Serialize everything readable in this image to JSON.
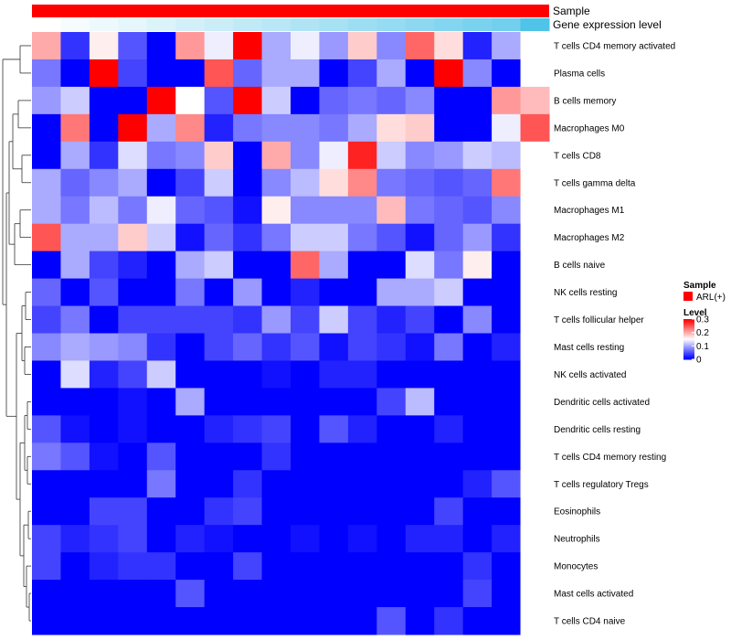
{
  "colors": {
    "sample_bar": "#ff0000",
    "low": "#0000ff",
    "mid": "#ffffff",
    "high": "#ff0000",
    "expr_low": "#ffffff",
    "expr_high": "#4fc3e8"
  },
  "annotation": {
    "sample_label": "Sample",
    "expression_label": "Gene expression level"
  },
  "legend": {
    "sample_title": "Sample",
    "sample_entry": "ARL(+)",
    "level_title": "Level",
    "ticks": [
      "0.3",
      "0.2",
      "0.1",
      "0"
    ],
    "tick_values": [
      0.3,
      0.2,
      0.1,
      0
    ]
  },
  "chart_data": {
    "type": "heatmap",
    "title": "",
    "xlabel": "",
    "ylabel": "",
    "value_range": [
      0,
      0.3
    ],
    "columns": 18,
    "rows": [
      "T cells CD4 memory activated",
      "Plasma cells",
      "B cells memory",
      "Macrophages M0",
      "T cells CD8",
      "T cells gamma delta",
      "Macrophages M1",
      "Macrophages M2",
      "B cells naive",
      "NK cells resting",
      "T cells follicular helper",
      "Mast cells resting",
      "NK cells activated",
      "Dendritic cells activated",
      "Dendritic cells resting",
      "T cells CD4 memory resting",
      "T cells regulatory  Tregs",
      "Eosinophils",
      "Neutrophils",
      "Monocytes",
      "Mast cells activated",
      "T cells CD4 naive"
    ],
    "values": [
      [
        0.2,
        0.03,
        0.16,
        0.05,
        0.0,
        0.21,
        0.14,
        0.3,
        0.1,
        0.14,
        0.09,
        0.18,
        0.08,
        0.24,
        0.17,
        0.02,
        0.1,
        null
      ],
      [
        0.07,
        0.0,
        0.3,
        0.04,
        0.0,
        0.0,
        0.25,
        0.06,
        0.1,
        0.1,
        0.0,
        0.04,
        0.1,
        0.0,
        0.3,
        0.08,
        0.0,
        null
      ],
      [
        0.09,
        0.12,
        0.0,
        0.0,
        0.3,
        0.15,
        0.05,
        0.3,
        0.12,
        0.0,
        0.06,
        0.07,
        0.06,
        0.08,
        0.0,
        0.0,
        0.21,
        0.19
      ],
      [
        0.0,
        0.23,
        0.0,
        0.3,
        0.1,
        0.22,
        0.02,
        0.07,
        0.08,
        0.08,
        0.07,
        0.1,
        0.17,
        0.18,
        0.0,
        0.0,
        0.14,
        0.25
      ],
      [
        0.0,
        0.1,
        0.03,
        0.13,
        0.07,
        0.08,
        0.18,
        0.0,
        0.2,
        0.08,
        0.14,
        0.28,
        0.12,
        0.08,
        0.09,
        0.12,
        0.11,
        null
      ],
      [
        0.1,
        0.06,
        0.08,
        0.1,
        0.0,
        0.04,
        0.12,
        0.0,
        0.08,
        0.11,
        0.17,
        0.22,
        0.07,
        0.06,
        0.05,
        0.06,
        0.23,
        null
      ],
      [
        0.1,
        0.07,
        0.11,
        0.07,
        0.14,
        0.06,
        0.05,
        0.01,
        0.16,
        0.08,
        0.08,
        0.08,
        0.19,
        0.07,
        0.06,
        0.05,
        0.08,
        null
      ],
      [
        0.25,
        0.1,
        0.1,
        0.18,
        0.12,
        0.01,
        0.06,
        0.03,
        0.07,
        0.12,
        0.12,
        0.07,
        0.05,
        0.01,
        0.06,
        0.09,
        0.03,
        null
      ],
      [
        0.0,
        0.1,
        0.04,
        0.02,
        0.0,
        0.1,
        0.12,
        0.0,
        0.0,
        0.24,
        0.1,
        0.0,
        0.0,
        0.13,
        0.07,
        0.16,
        0.0,
        null
      ],
      [
        0.06,
        0.0,
        0.05,
        0.0,
        0.0,
        0.07,
        0.0,
        0.09,
        0.0,
        0.02,
        0.0,
        0.0,
        0.1,
        0.1,
        0.12,
        0.0,
        0.0,
        null
      ],
      [
        0.04,
        0.07,
        0.0,
        0.04,
        0.04,
        0.04,
        0.04,
        0.03,
        0.09,
        0.04,
        0.12,
        0.04,
        0.02,
        0.04,
        0.0,
        0.08,
        0.0,
        null
      ],
      [
        0.08,
        0.1,
        0.09,
        0.08,
        0.03,
        0.0,
        0.04,
        0.06,
        0.03,
        0.05,
        0.01,
        0.04,
        0.03,
        0.01,
        0.07,
        0.0,
        0.02,
        null
      ],
      [
        0.0,
        0.13,
        0.02,
        0.04,
        0.12,
        0.0,
        0.0,
        0.0,
        0.01,
        0.0,
        0.02,
        0.02,
        0.0,
        0.0,
        0.0,
        0.0,
        0.0,
        null
      ],
      [
        0.0,
        0.0,
        0.0,
        0.01,
        0.0,
        0.1,
        0.0,
        0.0,
        0.0,
        0.0,
        0.0,
        0.0,
        0.04,
        0.11,
        0.0,
        0.0,
        0.0,
        null
      ],
      [
        0.05,
        0.01,
        0.0,
        0.01,
        0.0,
        0.0,
        0.02,
        0.03,
        0.04,
        0.0,
        0.05,
        0.02,
        0.0,
        0.0,
        0.02,
        0.0,
        0.0,
        null
      ],
      [
        0.07,
        0.05,
        0.01,
        0.0,
        0.05,
        0.0,
        0.0,
        0.0,
        0.03,
        0.0,
        0.0,
        0.0,
        0.0,
        0.0,
        0.0,
        0.0,
        0.0,
        null
      ],
      [
        0.0,
        0.0,
        0.0,
        0.0,
        0.07,
        0.0,
        0.0,
        0.03,
        0.0,
        0.0,
        0.0,
        0.0,
        0.0,
        0.0,
        0.0,
        0.02,
        0.05,
        null
      ],
      [
        0.0,
        0.0,
        0.04,
        0.04,
        0.0,
        0.0,
        0.03,
        0.04,
        0.0,
        0.0,
        0.0,
        0.0,
        0.0,
        0.0,
        0.04,
        0.0,
        0.0,
        null
      ],
      [
        0.04,
        0.02,
        0.03,
        0.04,
        0.0,
        0.02,
        0.01,
        0.0,
        0.0,
        0.01,
        0.0,
        0.01,
        0.0,
        0.02,
        0.02,
        0.0,
        0.02,
        null
      ],
      [
        0.04,
        0.0,
        0.02,
        0.03,
        0.03,
        0.0,
        0.0,
        0.04,
        0.0,
        0.0,
        0.0,
        0.0,
        0.0,
        0.0,
        0.0,
        0.03,
        0.0,
        null
      ],
      [
        0.0,
        0.0,
        0.0,
        0.0,
        0.0,
        0.05,
        0.0,
        0.0,
        0.0,
        0.0,
        0.0,
        0.0,
        0.0,
        0.0,
        0.0,
        0.04,
        0.0,
        null
      ],
      [
        0.0,
        0.0,
        0.0,
        0.0,
        0.0,
        0.0,
        0.0,
        0.0,
        0.0,
        0.0,
        0.0,
        0.0,
        0.05,
        0.0,
        0.03,
        0.0,
        0.0,
        null
      ]
    ],
    "expression_level": [
      0.0,
      0.05,
      0.1,
      0.15,
      0.2,
      0.25,
      0.3,
      0.35,
      0.4,
      0.45,
      0.5,
      0.55,
      0.6,
      0.65,
      0.7,
      0.75,
      0.8,
      1.0
    ]
  }
}
